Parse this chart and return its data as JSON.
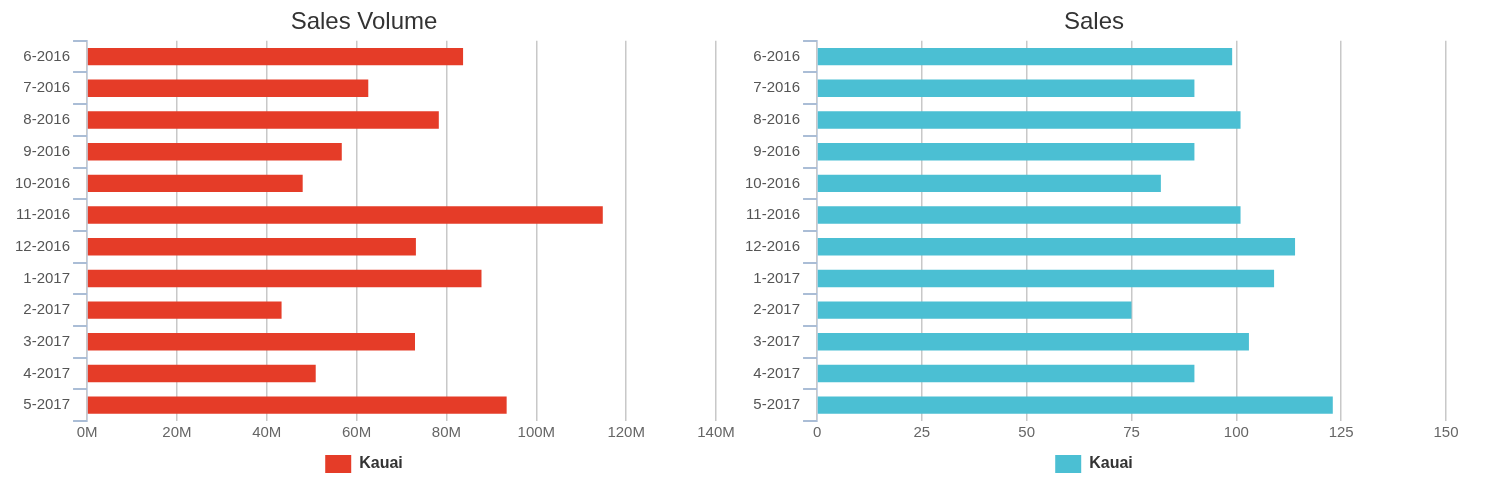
{
  "chart_data": [
    {
      "type": "bar",
      "orientation": "horizontal",
      "title": "Sales Volume",
      "categories": [
        "6-2016",
        "7-2016",
        "8-2016",
        "9-2016",
        "10-2016",
        "11-2016",
        "12-2016",
        "1-2017",
        "2-2017",
        "3-2017",
        "4-2017",
        "5-2017"
      ],
      "series": [
        {
          "name": "Kauai",
          "color": "#e53c28",
          "values": [
            83.7,
            62.6,
            78.3,
            56.7,
            48.0,
            114.8,
            73.2,
            87.8,
            43.3,
            73.0,
            50.9,
            93.4
          ]
        }
      ],
      "xlim": [
        0,
        140
      ],
      "xticks": [
        {
          "value": 0,
          "label": "0M"
        },
        {
          "value": 20,
          "label": "20M"
        },
        {
          "value": 40,
          "label": "40M"
        },
        {
          "value": 60,
          "label": "60M"
        },
        {
          "value": 80,
          "label": "80M"
        },
        {
          "value": 100,
          "label": "100M"
        },
        {
          "value": 120,
          "label": "120M"
        },
        {
          "value": 140,
          "label": "140M"
        }
      ],
      "grid": "x",
      "legend": "bottom"
    },
    {
      "type": "bar",
      "orientation": "horizontal",
      "title": "Sales",
      "categories": [
        "6-2016",
        "7-2016",
        "8-2016",
        "9-2016",
        "10-2016",
        "11-2016",
        "12-2016",
        "1-2017",
        "2-2017",
        "3-2017",
        "4-2017",
        "5-2017"
      ],
      "series": [
        {
          "name": "Kauai",
          "color": "#4bbfd3",
          "values": [
            99,
            90,
            101,
            90,
            82,
            101,
            114,
            109,
            75,
            103,
            90,
            123
          ]
        }
      ],
      "xlim": [
        0,
        150
      ],
      "xticks": [
        0,
        25,
        50,
        75,
        100,
        125,
        150
      ],
      "grid": "x",
      "legend": "bottom"
    }
  ]
}
